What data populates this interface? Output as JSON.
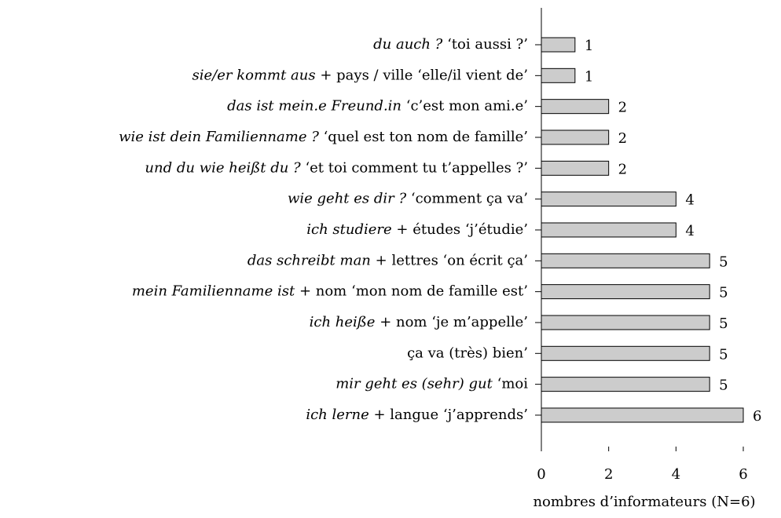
{
  "chart_data": {
    "type": "barh",
    "categories": [
      {
        "italic": "du auch ?",
        "roman": "‘toi aussi ?’"
      },
      {
        "italic": "sie/er kommt aus",
        "roman": "+ pays / ville ‘elle/il vient de’"
      },
      {
        "italic": "das ist mein.e Freund.in",
        "roman": "‘c’est mon ami.e’"
      },
      {
        "italic": "wie ist dein Familienname ?",
        "roman": "‘quel est ton nom de famille’"
      },
      {
        "italic": "und du wie heißt du ?",
        "roman": "‘et toi comment tu t’appelles ?’"
      },
      {
        "italic": "wie geht es dir ?",
        "roman": "‘comment ça va’"
      },
      {
        "italic": "ich studiere",
        "roman": "+ études ‘j’étudie’"
      },
      {
        "italic": "das schreibt man",
        "roman": "+ lettres ‘on écrit ça’"
      },
      {
        "italic": "mein Familienname ist",
        "roman": "+ nom ‘mon nom de famille est’"
      },
      {
        "italic": "ich heiße",
        "roman": "+ nom ‘je m’appelle’"
      },
      {
        "roman": "ça va (très) bien’"
      },
      {
        "italic": "mir geht es (sehr) gut",
        "roman": "‘moi"
      },
      {
        "italic": "ich lerne",
        "roman": "+ langue ‘j’apprends’"
      }
    ],
    "values": [
      1,
      1,
      2,
      2,
      2,
      4,
      4,
      5,
      5,
      5,
      5,
      5,
      6
    ],
    "color": "#cccccc",
    "xlim": [
      0,
      6
    ],
    "xticks": [
      0,
      2,
      4,
      6
    ],
    "xlabel": "nombres d’informateurs (N=6)"
  }
}
